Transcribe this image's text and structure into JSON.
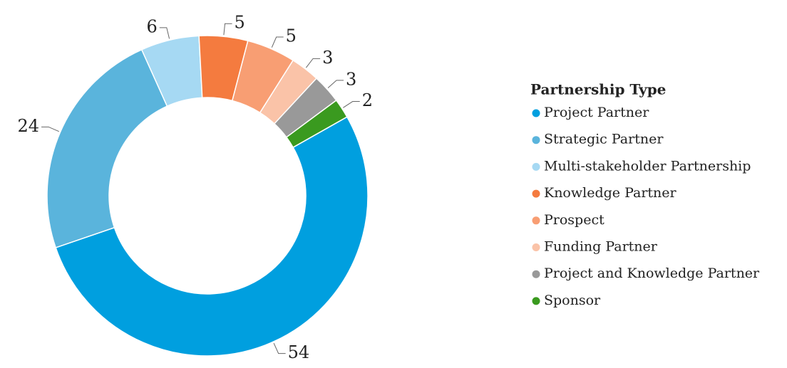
{
  "chart_data": {
    "type": "pie",
    "donut": true,
    "legend_title": "Partnership Type",
    "legend_position": "right",
    "categories": [
      "Project Partner",
      "Strategic Partner",
      "Multi-stakeholder Partnership",
      "Knowledge Partner",
      "Prospect",
      "Funding Partner",
      "Project and Knowledge Partner",
      "Sponsor"
    ],
    "values": [
      54,
      24,
      6,
      5,
      5,
      3,
      3,
      2
    ],
    "colors": [
      "#009fdf",
      "#5ab4dc",
      "#a6d9f3",
      "#f47b3f",
      "#f89e73",
      "#fac3a8",
      "#999999",
      "#3a9a1f"
    ]
  }
}
